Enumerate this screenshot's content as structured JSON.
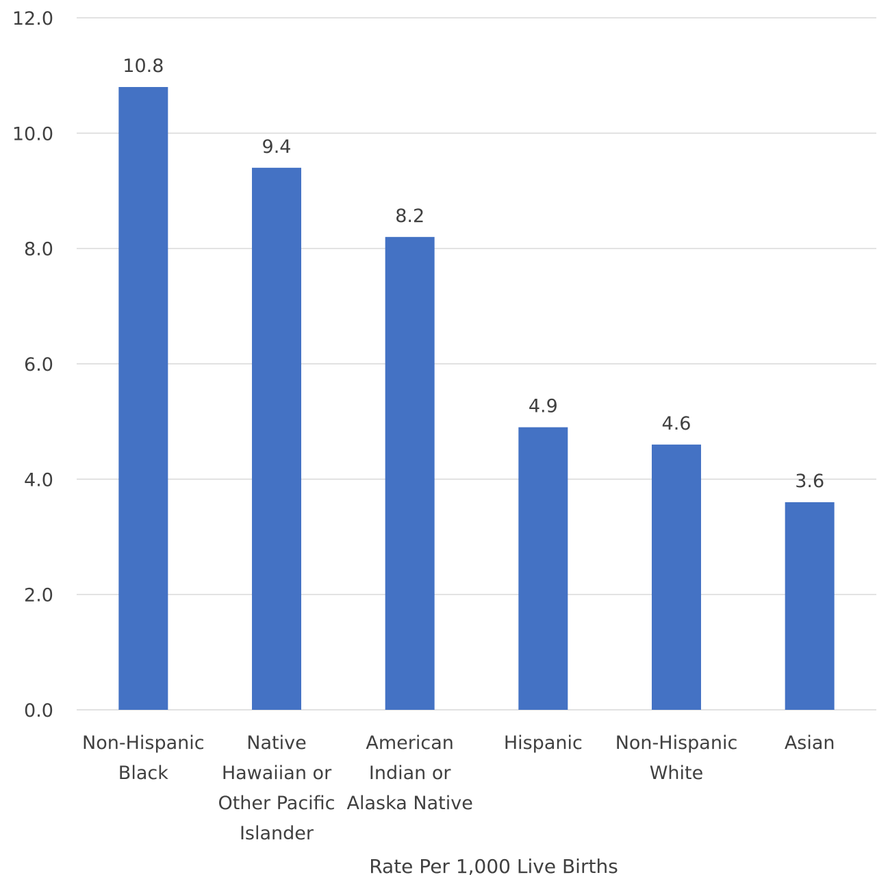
{
  "chart_data": {
    "type": "bar",
    "categories": [
      [
        "Non-Hispanic",
        "Black"
      ],
      [
        "Native",
        "Hawaiian or",
        "Other Pacific",
        "Islander"
      ],
      [
        "American",
        "Indian or",
        "Alaska Native"
      ],
      [
        "Hispanic"
      ],
      [
        "Non-Hispanic",
        "White"
      ],
      [
        "Asian"
      ]
    ],
    "values": [
      10.8,
      9.4,
      8.2,
      4.9,
      4.6,
      3.6
    ],
    "data_labels": [
      "10.8",
      "9.4",
      "8.2",
      "4.9",
      "4.6",
      "3.6"
    ],
    "xlabel": "Rate Per 1,000 Live Births",
    "ylabel": "",
    "ylim": [
      0,
      12
    ],
    "yticks": [
      "0.0",
      "2.0",
      "4.0",
      "6.0",
      "8.0",
      "10.0",
      "12.0"
    ],
    "grid": true,
    "bar_color": "#4472C4"
  }
}
